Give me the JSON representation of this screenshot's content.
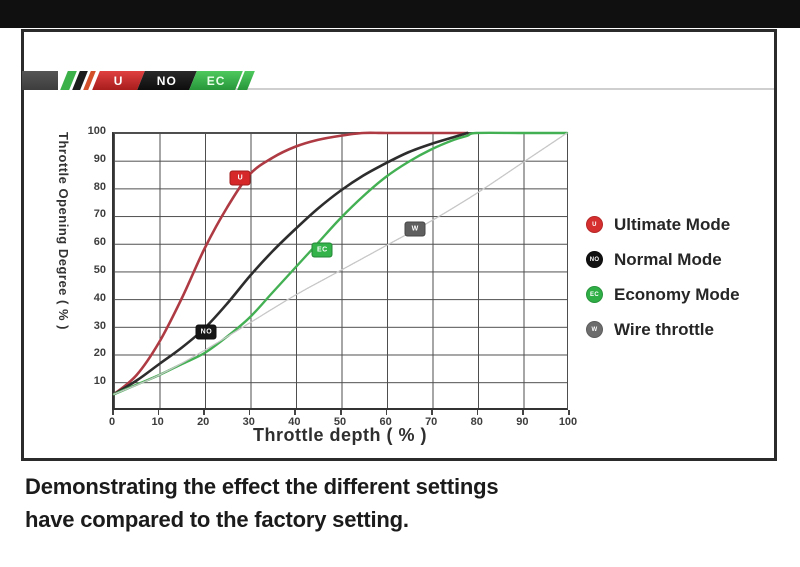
{
  "page": {
    "caption_line1": "Demonstrating the effect the different settings",
    "caption_line2": "have compared to the factory setting."
  },
  "banner": {
    "segments": [
      {
        "label": "U",
        "color": "#c52525"
      },
      {
        "label": "NO",
        "color": "#151515"
      },
      {
        "label": "EC",
        "color": "#33a846"
      }
    ]
  },
  "chart_data": {
    "type": "line",
    "title": "",
    "xlabel": "Throttle depth ( % )",
    "ylabel": "Throttle Opening Degree ( % )",
    "xlim": [
      0,
      100
    ],
    "ylim": [
      0,
      100
    ],
    "grid": true,
    "legend_position": "right-outside",
    "xticks": [
      0,
      10,
      20,
      30,
      40,
      50,
      60,
      70,
      80,
      90,
      100
    ],
    "yticks": [
      10,
      20,
      30,
      40,
      50,
      60,
      70,
      80,
      90,
      100
    ],
    "series": [
      {
        "name": "Ultimate Mode",
        "color": "#ae3a43",
        "width": 2.6,
        "dash": false,
        "points": [
          [
            0,
            5
          ],
          [
            5,
            12
          ],
          [
            10,
            24
          ],
          [
            15,
            40
          ],
          [
            20,
            58
          ],
          [
            25,
            73
          ],
          [
            30,
            85
          ],
          [
            35,
            91
          ],
          [
            40,
            95
          ],
          [
            45,
            97.5
          ],
          [
            50,
            99
          ],
          [
            55,
            100
          ],
          [
            60,
            100
          ],
          [
            70,
            100
          ],
          [
            78,
            100
          ]
        ]
      },
      {
        "name": "Normal Mode",
        "color": "#2d2d2d",
        "width": 2.6,
        "dash": false,
        "points": [
          [
            0,
            5
          ],
          [
            5,
            10
          ],
          [
            10,
            16
          ],
          [
            15,
            22
          ],
          [
            20,
            29
          ],
          [
            25,
            38
          ],
          [
            30,
            48
          ],
          [
            35,
            57
          ],
          [
            40,
            65
          ],
          [
            45,
            72.5
          ],
          [
            50,
            79
          ],
          [
            55,
            84.5
          ],
          [
            60,
            89
          ],
          [
            65,
            93
          ],
          [
            70,
            96
          ],
          [
            75,
            98.5
          ],
          [
            78,
            100
          ]
        ]
      },
      {
        "name": "Economy Mode",
        "color": "#44b054",
        "width": 2.4,
        "dash": false,
        "points": [
          [
            0,
            5
          ],
          [
            5,
            8.5
          ],
          [
            10,
            12
          ],
          [
            15,
            16
          ],
          [
            20,
            20
          ],
          [
            25,
            26
          ],
          [
            30,
            33
          ],
          [
            35,
            42
          ],
          [
            40,
            51
          ],
          [
            45,
            60
          ],
          [
            50,
            69
          ],
          [
            55,
            77
          ],
          [
            60,
            84
          ],
          [
            65,
            89.5
          ],
          [
            70,
            94
          ],
          [
            75,
            97.5
          ],
          [
            78,
            99
          ],
          [
            80,
            100
          ],
          [
            90,
            100
          ],
          [
            100,
            100
          ]
        ]
      },
      {
        "name": "Wire throttle",
        "color": "#c6c6c6",
        "width": 1.3,
        "dash": true,
        "points": [
          [
            0,
            5
          ],
          [
            10,
            12
          ],
          [
            20,
            21
          ],
          [
            30,
            31
          ],
          [
            40,
            41
          ],
          [
            50,
            50
          ],
          [
            60,
            59
          ],
          [
            70,
            68
          ],
          [
            80,
            78
          ],
          [
            90,
            89
          ],
          [
            100,
            100
          ]
        ]
      }
    ],
    "markers": [
      {
        "label": "U",
        "x": 27.9,
        "y": 83.5,
        "color": "#d62828"
      },
      {
        "label": "NO",
        "x": 20.4,
        "y": 27.7,
        "color": "#161616"
      },
      {
        "label": "EC",
        "x": 46,
        "y": 57.5,
        "color": "#33b34a"
      },
      {
        "label": "W",
        "x": 66.5,
        "y": 65,
        "color": "#5f5f5f"
      }
    ]
  },
  "legend": {
    "items": [
      {
        "label": "Ultimate Mode",
        "badge": "U",
        "color": "#d62f2f"
      },
      {
        "label": "Normal Mode",
        "badge": "NO",
        "color": "#111111"
      },
      {
        "label": "Economy Mode",
        "badge": "EC",
        "color": "#2fae46"
      },
      {
        "label": "Wire throttle",
        "badge": "W",
        "color": "#6d6d6d"
      }
    ]
  }
}
